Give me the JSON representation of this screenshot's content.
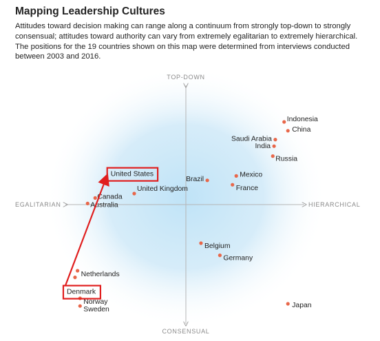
{
  "header": {
    "title": "Mapping Leadership Cultures",
    "description_lines": [
      "Attitudes toward decision making can range along a continuum from strongly top-down to strongly",
      "consensual; attitudes toward authority can vary from extremely egalitarian to extremely hierarchical.",
      "The positions for the 19 countries shown on this map were determined from interviews conducted",
      "between 2003 and 2016."
    ]
  },
  "chart_data": {
    "type": "scatter",
    "title": "",
    "axes": {
      "top": "TOP-DOWN",
      "bottom": "CONSENSUAL",
      "left": "EGALITARIAN",
      "right": "HIERARCHICAL"
    },
    "xlim": [
      -10,
      10
    ],
    "ylim": [
      -10,
      10
    ],
    "grid": false,
    "background_color": "#bfe3f7",
    "point_color": "#e8674a",
    "annotation_color": "#e01e1e",
    "points": [
      {
        "label": "Indonesia",
        "x": 7.8,
        "y": 7.5
      },
      {
        "label": "China",
        "x": 8.1,
        "y": 6.7
      },
      {
        "label": "Saudi Arabia",
        "x": 7.1,
        "y": 5.9
      },
      {
        "label": "India",
        "x": 7.0,
        "y": 5.3
      },
      {
        "label": "Russia",
        "x": 6.9,
        "y": 4.4
      },
      {
        "label": "Mexico",
        "x": 4.0,
        "y": 2.6
      },
      {
        "label": "Brazil",
        "x": 1.7,
        "y": 2.2
      },
      {
        "label": "France",
        "x": 3.7,
        "y": 1.8
      },
      {
        "label": "United States",
        "x": -6.3,
        "y": 2.4
      },
      {
        "label": "United Kingdom",
        "x": -4.1,
        "y": 1.0
      },
      {
        "label": "Canada",
        "x": -7.2,
        "y": 0.6
      },
      {
        "label": "Australia",
        "x": -7.8,
        "y": 0.1
      },
      {
        "label": "Belgium",
        "x": 1.2,
        "y": -3.5
      },
      {
        "label": "Germany",
        "x": 2.7,
        "y": -4.6
      },
      {
        "label": "Netherlands",
        "x": -8.6,
        "y": -6.0
      },
      {
        "label": "Denmark",
        "x": -8.8,
        "y": -6.6
      },
      {
        "label": "Norway",
        "x": -8.4,
        "y": -8.5
      },
      {
        "label": "Sweden",
        "x": -8.4,
        "y": -9.2
      },
      {
        "label": "Japan",
        "x": 8.1,
        "y": -9.0
      }
    ],
    "highlighted": [
      "United States",
      "Denmark"
    ],
    "arrow": {
      "from": "Denmark",
      "to": "United States"
    }
  }
}
